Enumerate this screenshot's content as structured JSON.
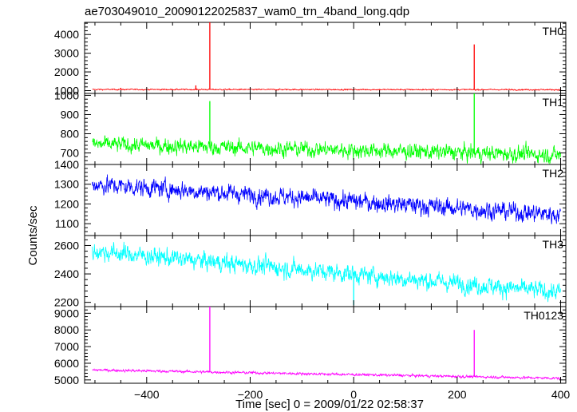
{
  "title": "ae703049010_20090122025837_wam0_trn_4band_long.qdp",
  "xlabel": "Time [sec] 0 = 2009/01/22 02:58:37",
  "ylabel": "Counts/sec",
  "chart_data": {
    "type": "line",
    "title": "ae703049010_20090122025837_wam0_trn_4band_long.qdp",
    "xlabel": "Time [sec] 0 = 2009/01/22 02:58:37",
    "ylabel": "Counts/sec",
    "xlim": [
      -520,
      410
    ],
    "xticks": [
      -400,
      -200,
      0,
      200,
      400
    ],
    "grid": false,
    "panels": [
      {
        "name": "TH0",
        "color": "#ff0000",
        "ylim": [
          850,
          4650
        ],
        "yticks": [
          1000,
          2000,
          3000,
          4000
        ],
        "baseline": [
          [
            -505,
            1060
          ],
          [
            400,
            1050
          ]
        ],
        "noise": 25,
        "spikes": [
          [
            -278,
            4650
          ],
          [
            233,
            3470
          ],
          [
            -305,
            1280
          ],
          [
            -450,
            1150
          ]
        ]
      },
      {
        "name": "TH1",
        "color": "#00ff00",
        "ylim": [
          640,
          1010
        ],
        "yticks": [
          700,
          800,
          900,
          1000
        ],
        "baseline": [
          [
            -505,
            745
          ],
          [
            400,
            690
          ]
        ],
        "noise": 32,
        "spikes": [
          [
            -278,
            970
          ],
          [
            233,
            1010
          ]
        ]
      },
      {
        "name": "TH2",
        "color": "#0000ff",
        "ylim": [
          1040,
          1400
        ],
        "yticks": [
          1100,
          1200,
          1300,
          1400
        ],
        "baseline": [
          [
            -505,
            1300
          ],
          [
            400,
            1145
          ]
        ],
        "noise": 36,
        "spikes": []
      },
      {
        "name": "TH3",
        "color": "#00ffff",
        "ylim": [
          2170,
          2670
        ],
        "yticks": [
          2200,
          2400,
          2600
        ],
        "baseline": [
          [
            -505,
            2560
          ],
          [
            400,
            2270
          ]
        ],
        "noise": 50,
        "spikes": [
          [
            0,
            2180
          ]
        ]
      },
      {
        "name": "TH0123",
        "color": "#ff00ff",
        "ylim": [
          4800,
          9400
        ],
        "yticks": [
          5000,
          6000,
          7000,
          8000,
          9000
        ],
        "baseline": [
          [
            -505,
            5600
          ],
          [
            400,
            5100
          ]
        ],
        "noise": 60,
        "spikes": [
          [
            -278,
            9400
          ],
          [
            233,
            8000
          ]
        ]
      }
    ]
  }
}
